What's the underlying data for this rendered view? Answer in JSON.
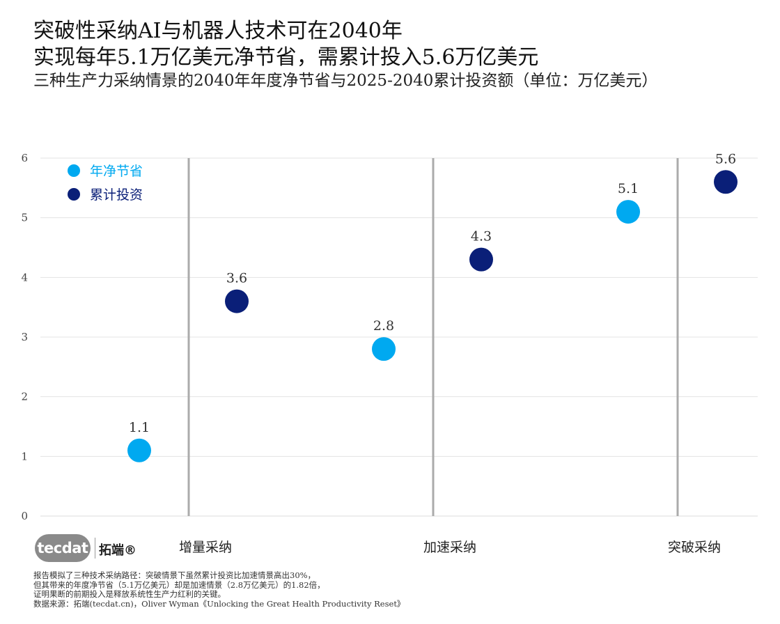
{
  "title_line1": "突破性采纳AI与机器人技术可在2040年",
  "title_line2": "实现每年5.1万亿美元净节省，需累计投入5.6万亿美元",
  "subtitle": "三种生产力采纳情景的2040年年度净节省与2025-2040累计投资额（单位：万亿美元）",
  "logo": {
    "mark_text": "tecdat",
    "brand_cn": "拓端®"
  },
  "notes": [
    "报告模拟了三种技术采纳路径：突破情景下虽然累计投资比加速情景高出30%，",
    "但其带来的年度净节省（5.1万亿美元）却是加速情景（2.8万亿美元）的1.82倍，",
    "证明果断的前期投入是释放系统性生产力红利的关键。",
    "数据来源：拓端(tecdat.cn)，Oliver Wyman《Unlocking the Great Health Productivity Reset》"
  ],
  "chart_data": {
    "type": "scatter",
    "categories": [
      "增量采纳",
      "加速采纳",
      "突破采纳"
    ],
    "series": [
      {
        "name": "年净节省",
        "color": "#00A9F0",
        "values": [
          1.1,
          2.8,
          5.1
        ]
      },
      {
        "name": "累计投资",
        "color": "#0A1F78",
        "values": [
          3.6,
          4.3,
          5.6
        ]
      }
    ],
    "data_labels": [
      [
        "1.1",
        "2.8",
        "5.1"
      ],
      [
        "3.6",
        "4.3",
        "5.6"
      ]
    ],
    "ylim": [
      0,
      6
    ],
    "yticks": [
      "0",
      "1",
      "2",
      "3",
      "4",
      "5",
      "6"
    ],
    "xlabel": "",
    "ylabel": "",
    "legend_position": "top-left",
    "grid": true
  }
}
